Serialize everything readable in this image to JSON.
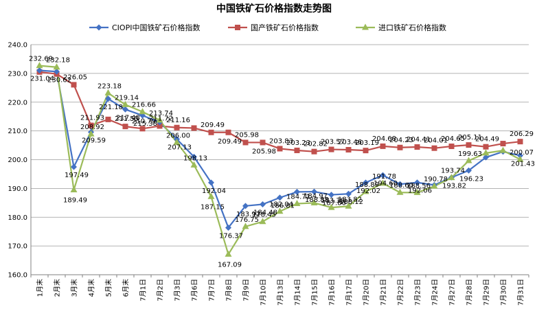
{
  "chart_data": {
    "type": "line",
    "title": "中国铁矿石价格指数走势图",
    "xlabel": "",
    "ylabel": "",
    "ylim": [
      160,
      240
    ],
    "y_ticks": [
      "160.0",
      "170.0",
      "180.0",
      "190.0",
      "200.0",
      "210.0",
      "220.0",
      "230.0",
      "240.0"
    ],
    "grid": true,
    "legend_position": "top",
    "categories": [
      "1月末",
      "2月末",
      "3月末",
      "4月末",
      "5月末",
      "6月末",
      "7月1日",
      "7月2日",
      "7月3日",
      "7月6日",
      "7月7日",
      "7月8日",
      "7月9日",
      "7月10日",
      "7月13日",
      "7月14日",
      "7月15日",
      "7月16日",
      "7月17日",
      "7月20日",
      "7月21日",
      "7月22日",
      "7月23日",
      "7月24日",
      "7月27日",
      "7月28日",
      "7月29日",
      "7月30日",
      "7月31日"
    ],
    "series": [
      {
        "name": "CIOPI中国铁矿石价格指数",
        "color": "#4472C4",
        "marker": "diamond",
        "values": [
          231.04,
          230.62,
          197.49,
          209.59,
          221.18,
          217.48,
          215.38,
          213.0,
          207.13,
          201.0,
          192.04,
          176.37,
          183.92,
          184.48,
          186.81,
          188.8,
          188.88,
          187.8,
          188.12,
          192.02,
          194.6,
          191.5,
          192.06,
          191.2,
          193.82,
          196.23,
          200.8,
          202.8,
          201.43
        ],
        "labels": [
          "231.04",
          "230.62",
          "197.49",
          "209.59",
          "221.18",
          "217.48",
          "215.38",
          "",
          "207.13",
          "",
          "192.04",
          "176.37",
          "183.92",
          "184.48",
          "186.81",
          "",
          "188.88",
          "187.80",
          "188.12",
          "192.02",
          "194.60",
          "",
          "192.06",
          "",
          "193.82",
          "196.23",
          "",
          "",
          "201.43"
        ]
      },
      {
        "name": "国产铁矿石价格指数",
        "color": "#C0504D",
        "marker": "square",
        "values": [
          230.5,
          229.8,
          226.05,
          211.93,
          214.0,
          211.55,
          210.79,
          211.72,
          211.16,
          211.0,
          209.49,
          209.49,
          205.98,
          205.98,
          203.83,
          203.23,
          202.82,
          203.57,
          203.46,
          203.19,
          204.68,
          204.23,
          204.41,
          204.01,
          204.65,
          205.11,
          204.49,
          205.6,
          206.29
        ],
        "labels": [
          "",
          "",
          "226.05",
          "211.93",
          "",
          "211.55",
          "210.79",
          "211.72",
          "211.16",
          "",
          "209.49",
          "209.49",
          "205.98",
          "205.98",
          "203.83",
          "203.23",
          "202.82",
          "203.57",
          "203.46",
          "203.19",
          "204.68",
          "204.23",
          "204.41",
          "204.01",
          "204.65",
          "205.11",
          "204.49",
          "",
          "206.29"
        ]
      },
      {
        "name": "进口铁矿石价格指数",
        "color": "#9BBB59",
        "marker": "triangle",
        "values": [
          232.69,
          232.18,
          189.49,
          208.92,
          223.18,
          219.14,
          216.66,
          213.74,
          206.0,
          198.13,
          187.15,
          167.09,
          176.75,
          178.45,
          182.04,
          184.71,
          184.97,
          183.38,
          183.82,
          188.89,
          191.78,
          188.6,
          188.56,
          190.78,
          193.74,
          199.63,
          202.3,
          203.2,
          200.07
        ],
        "labels": [
          "232.69",
          "232.18",
          "189.49",
          "208.92",
          "223.18",
          "219.14",
          "216.66",
          "213.74",
          "206.00",
          "198.13",
          "187.15",
          "167.09",
          "176.75",
          "178.45",
          "182.04",
          "184.71",
          "184.97",
          "183.38",
          "183.82",
          "188.89",
          "191.78",
          "188.60",
          "188.56",
          "190.78",
          "193.74",
          "199.63",
          "",
          "",
          "200.07"
        ]
      }
    ]
  }
}
